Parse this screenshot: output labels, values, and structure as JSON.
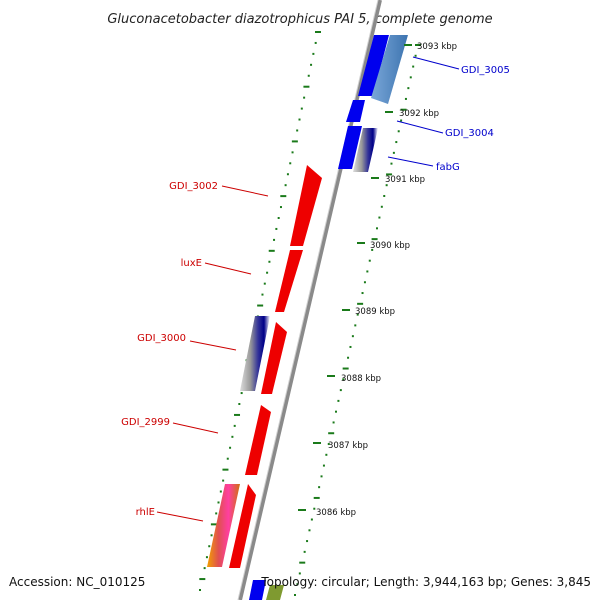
{
  "title": "Gluconacetobacter diazotrophicus PAI 5, complete genome",
  "footer": {
    "accession": "Accession: NC_010125",
    "topology": "Topology: circular; Length: 3,944,163 bp; Genes: 3,845"
  },
  "colors": {
    "forward_gene": "#ee0000",
    "reverse_gene": "#0000ee",
    "forward_label": "#cc0000",
    "reverse_label": "#0000cc",
    "tick": "#1a7a1a",
    "backbone": "#8a8a8a"
  },
  "ticks": [
    {
      "label": "3093 kbp"
    },
    {
      "label": "3092 kbp"
    },
    {
      "label": "3091 kbp"
    },
    {
      "label": "3090 kbp"
    },
    {
      "label": "3089 kbp"
    },
    {
      "label": "3088 kbp"
    },
    {
      "label": "3087 kbp"
    },
    {
      "label": "3086 kbp"
    }
  ],
  "reverse_genes": [
    {
      "label": "GDI_3005"
    },
    {
      "label": "GDI_3004"
    },
    {
      "label": "fabG"
    }
  ],
  "forward_genes": [
    {
      "label": "GDI_3002"
    },
    {
      "label": "luxE"
    },
    {
      "label": "GDI_3000"
    },
    {
      "label": "GDI_2999"
    },
    {
      "label": "rhlE"
    }
  ]
}
